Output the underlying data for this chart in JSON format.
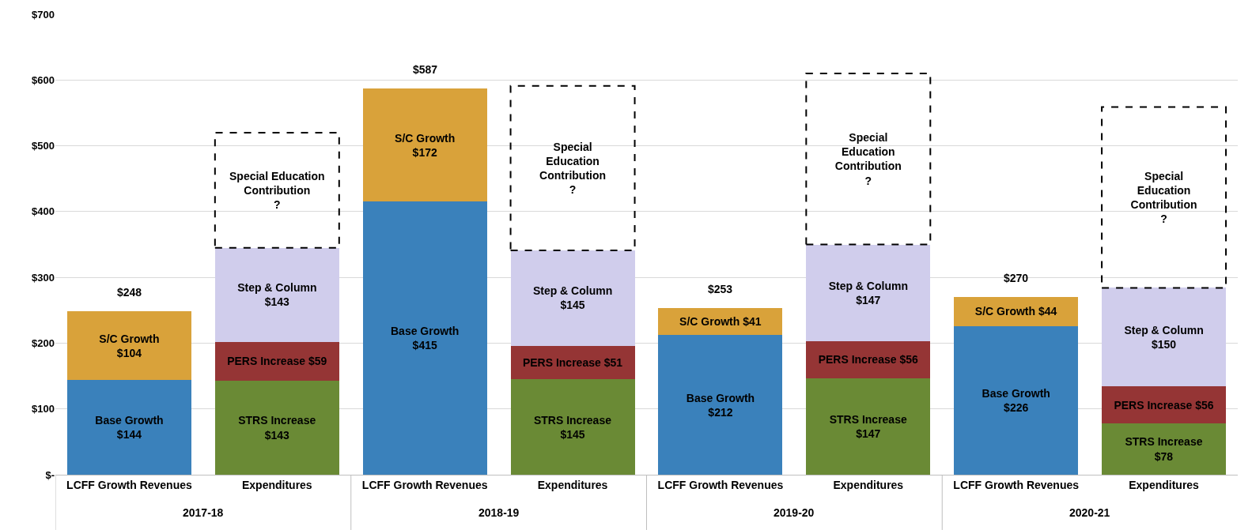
{
  "chart_data": {
    "type": "bar",
    "stacked": true,
    "categories": [
      "LCFF Growth Revenues",
      "Expenditures",
      "LCFF Growth Revenues",
      "Expenditures",
      "LCFF Growth Revenues",
      "Expenditures",
      "LCFF Growth Revenues",
      "Expenditures"
    ],
    "series": [
      {
        "name": "Base Growth",
        "color": "#3a81bb",
        "values": [
          144,
          null,
          415,
          null,
          212,
          null,
          226,
          null
        ],
        "value_labels": [
          "$144",
          null,
          "$415",
          null,
          "$212",
          null,
          "$226",
          null
        ]
      },
      {
        "name": "S/C Growth",
        "color": "#d9a23a",
        "values": [
          104,
          null,
          172,
          null,
          41,
          null,
          44,
          null
        ],
        "value_labels": [
          "$104",
          null,
          "$172",
          null,
          "$41",
          null,
          "$44",
          null
        ]
      },
      {
        "name": "STRS Increase",
        "color": "#6a8a35",
        "values": [
          null,
          143,
          null,
          145,
          null,
          147,
          null,
          78
        ],
        "value_labels": [
          null,
          "$143",
          null,
          "$145",
          null,
          "$147",
          null,
          "$78"
        ]
      },
      {
        "name": "PERS Increase",
        "color": "#953535",
        "values": [
          null,
          59,
          null,
          51,
          null,
          56,
          null,
          56
        ],
        "value_labels": [
          null,
          "$59",
          null,
          "$51",
          null,
          "$56",
          null,
          "$56"
        ]
      },
      {
        "name": "Step & Column",
        "color": "#d0cdec",
        "values": [
          null,
          143,
          null,
          145,
          null,
          147,
          null,
          150
        ],
        "value_labels": [
          null,
          "$143",
          null,
          "$145",
          null,
          "$147",
          null,
          "$150"
        ]
      },
      {
        "name": "Special Education Contribution",
        "color": "#000000",
        "line_style": "dashed",
        "values": [
          null,
          175,
          null,
          250,
          null,
          260,
          null,
          275
        ],
        "value_labels": [
          null,
          "?",
          null,
          "?",
          null,
          "?",
          null,
          "?"
        ]
      }
    ],
    "totals": [
      "$248",
      null,
      "$587",
      null,
      "$253",
      null,
      "$270",
      null
    ],
    "annotations": [
      "2017-18",
      "2018-19",
      "2019-20",
      "2020-21"
    ],
    "ylim": [
      0,
      700
    ],
    "yticks": [
      {
        "value": 0,
        "label": "$-"
      },
      {
        "value": 100,
        "label": "$100"
      },
      {
        "value": 200,
        "label": "$200"
      },
      {
        "value": 300,
        "label": "$300"
      },
      {
        "value": 400,
        "label": "$400"
      },
      {
        "value": 500,
        "label": "$500"
      },
      {
        "value": 600,
        "label": "$600"
      },
      {
        "value": 700,
        "label": "$700"
      }
    ],
    "grid": "y"
  }
}
